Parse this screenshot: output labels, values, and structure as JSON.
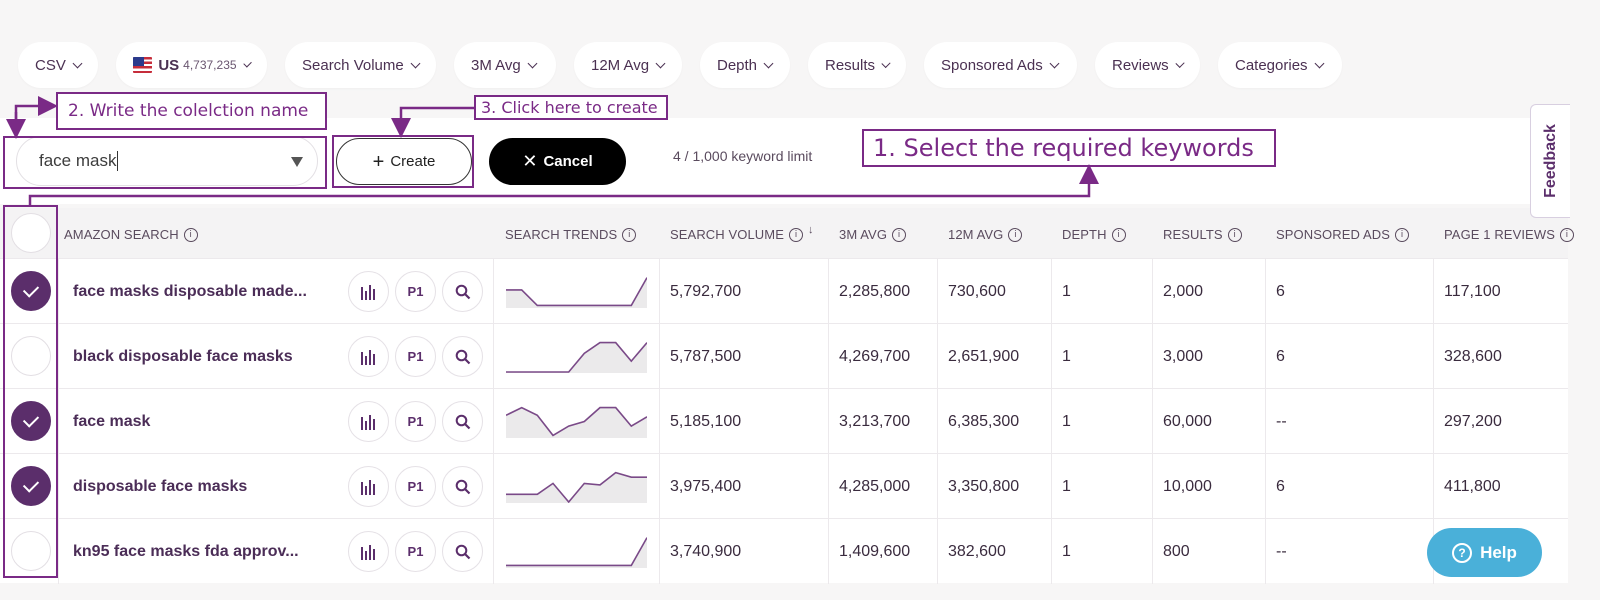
{
  "filters": [
    {
      "label": "CSV"
    },
    {
      "label": "US",
      "count": "4,737,235"
    },
    {
      "label": "Search Volume"
    },
    {
      "label": "3M Avg"
    },
    {
      "label": "12M Avg"
    },
    {
      "label": "Depth"
    },
    {
      "label": "Results"
    },
    {
      "label": "Sponsored Ads"
    },
    {
      "label": "Reviews"
    },
    {
      "label": "Categories"
    }
  ],
  "collection": {
    "name_value": "face mask",
    "create_label": "Create",
    "cancel_label": "Cancel",
    "limit_text": "4 / 1,000 keyword limit"
  },
  "columns": {
    "amazon_search": "AMAZON SEARCH",
    "search_trends": "SEARCH TRENDS",
    "search_volume": "SEARCH VOLUME",
    "avg3m": "3M AVG",
    "avg12m": "12M AVG",
    "depth": "DEPTH",
    "results": "RESULTS",
    "sponsored_ads": "SPONSORED ADS",
    "page1_reviews": "PAGE 1 REVIEWS"
  },
  "row_button_labels": {
    "p1": "P1"
  },
  "rows": [
    {
      "keyword": "face masks disposable made...",
      "checked": true,
      "search_volume": "5,792,700",
      "avg3m": "2,285,800",
      "avg12m": "730,600",
      "depth": "1",
      "results": "2,000",
      "sponsored_ads": "6",
      "page1_reviews": "117,100",
      "trend": [
        0.55,
        0.55,
        0.05,
        0.05,
        0.05,
        0.05,
        0.05,
        0.05,
        0.05,
        0.95
      ]
    },
    {
      "keyword": "black disposable face masks",
      "checked": false,
      "search_volume": "5,787,500",
      "avg3m": "4,269,700",
      "avg12m": "2,651,900",
      "depth": "1",
      "results": "3,000",
      "sponsored_ads": "6",
      "page1_reviews": "328,600",
      "trend": [
        0.0,
        0.0,
        0.0,
        0.0,
        0.0,
        0.6,
        0.95,
        0.95,
        0.35,
        0.95
      ]
    },
    {
      "keyword": "face mask",
      "checked": true,
      "search_volume": "5,185,100",
      "avg3m": "3,213,700",
      "avg12m": "6,385,300",
      "depth": "1",
      "results": "60,000",
      "sponsored_ads": "--",
      "page1_reviews": "297,200",
      "trend": [
        0.7,
        0.95,
        0.7,
        0.05,
        0.35,
        0.5,
        0.95,
        0.95,
        0.35,
        0.65
      ]
    },
    {
      "keyword": "disposable face masks",
      "checked": true,
      "search_volume": "3,975,400",
      "avg3m": "4,285,000",
      "avg12m": "3,350,800",
      "depth": "1",
      "results": "10,000",
      "sponsored_ads": "6",
      "page1_reviews": "411,800",
      "trend": [
        0.25,
        0.25,
        0.25,
        0.6,
        0.0,
        0.6,
        0.55,
        0.95,
        0.8,
        0.8
      ]
    },
    {
      "keyword": "kn95 face masks fda approv...",
      "checked": false,
      "search_volume": "3,740,900",
      "avg3m": "1,409,600",
      "avg12m": "382,600",
      "depth": "1",
      "results": "800",
      "sponsored_ads": "--",
      "page1_reviews": "",
      "trend": [
        0.05,
        0.05,
        0.05,
        0.05,
        0.05,
        0.05,
        0.05,
        0.05,
        0.05,
        0.95
      ]
    }
  ],
  "annotations": {
    "step1": "1. Select the required keywords",
    "step2": "2. Write the colelction name",
    "step3": "3. Click here to create"
  },
  "feedback_label": "Feedback",
  "help_label": "Help",
  "colors": {
    "accent": "#5b2e6b",
    "annotation": "#7a2a86",
    "help": "#4ab0d9"
  }
}
